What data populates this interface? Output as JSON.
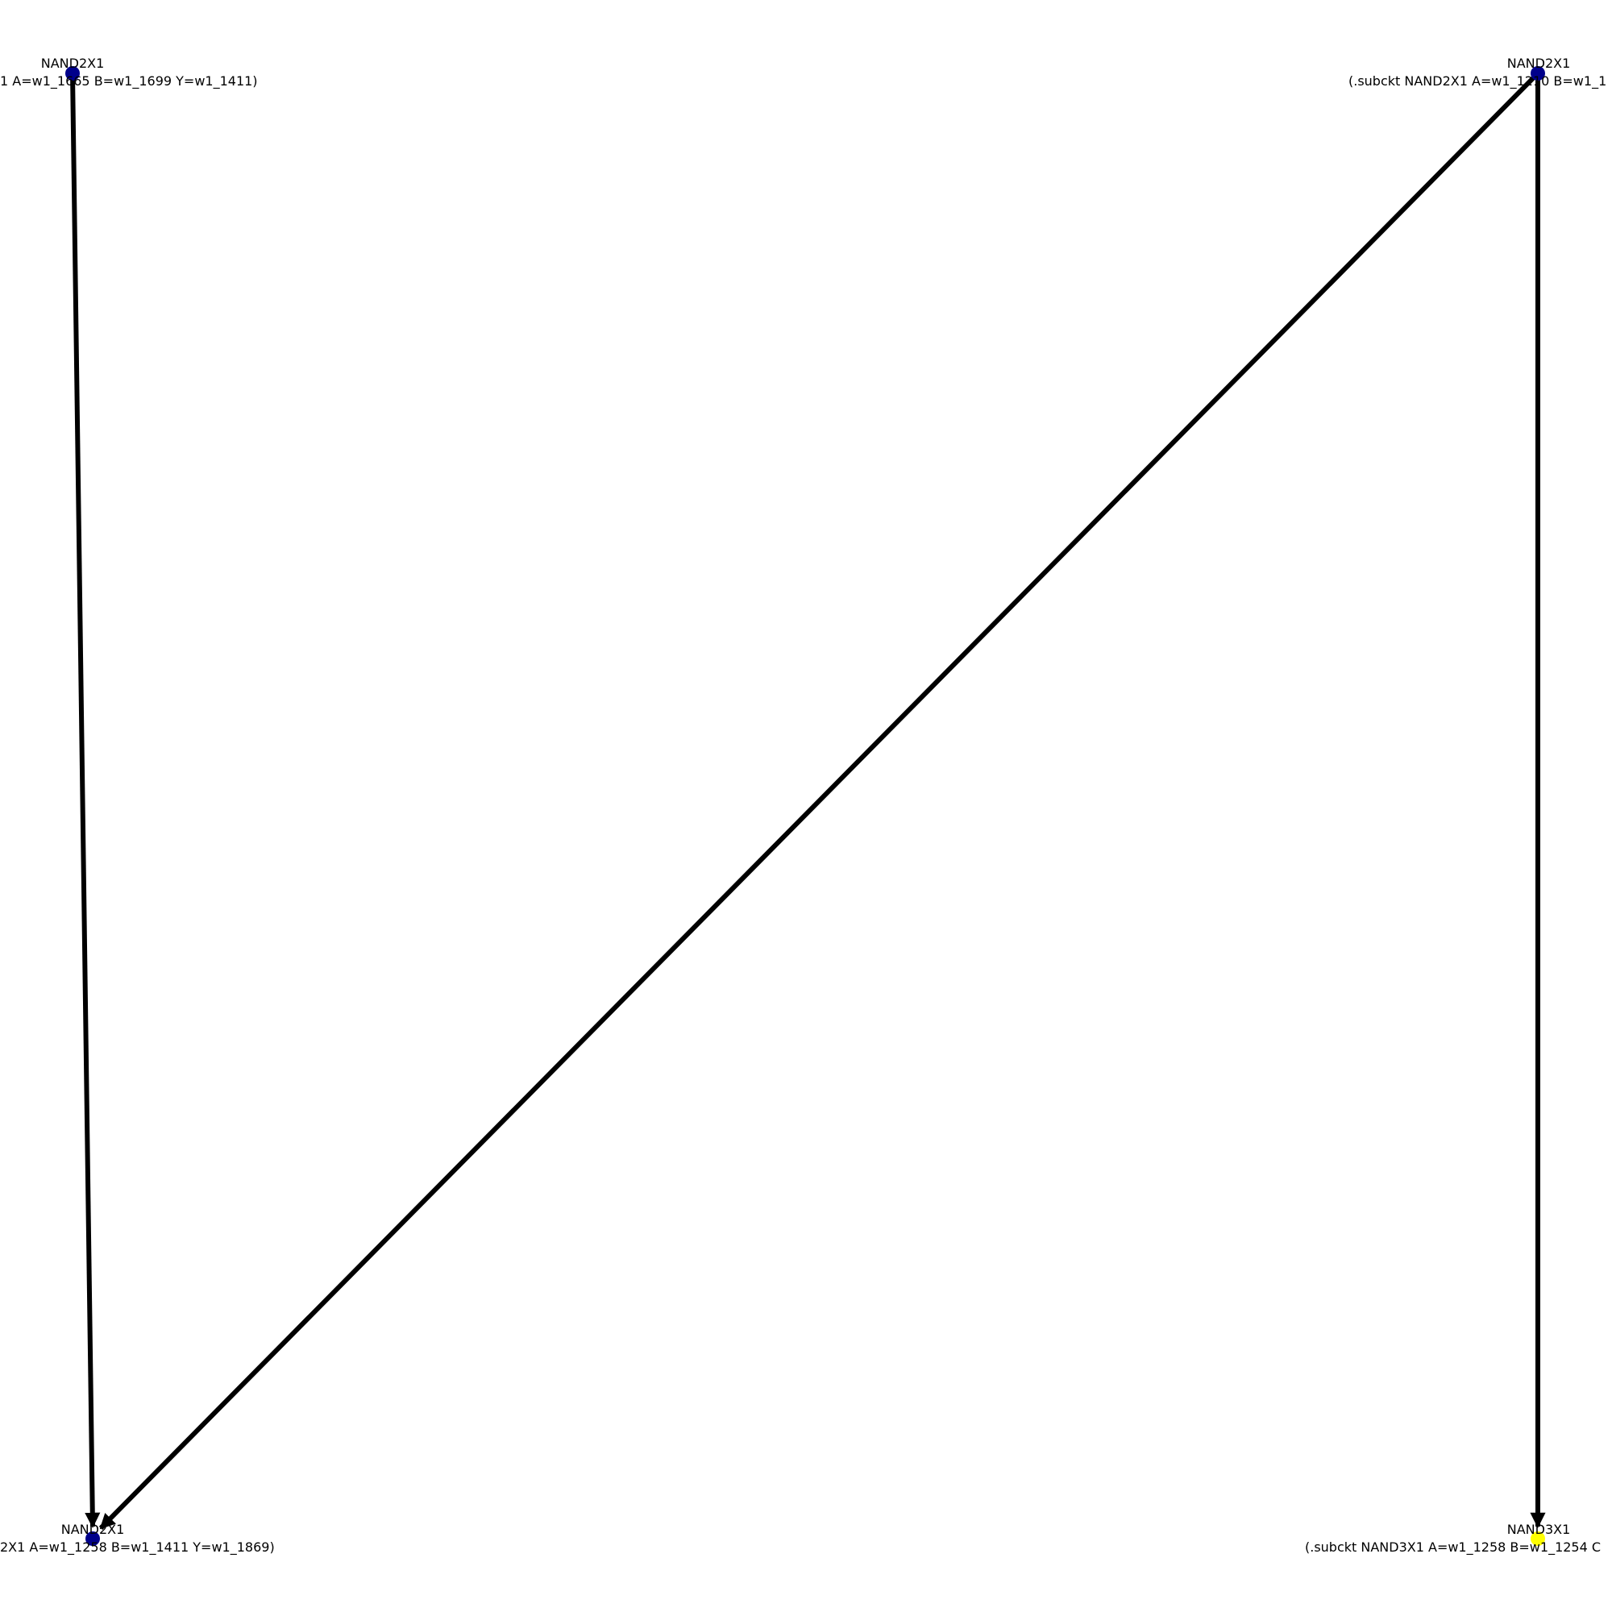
{
  "diagram": {
    "nodes": [
      {
        "id": "n1",
        "title": "NAND2X1",
        "detail": "1 A=w1_1665 B=w1_1699 Y=w1_1411)",
        "color": "#00008b"
      },
      {
        "id": "n2",
        "title": "NAND2X1",
        "detail": "(.subckt NAND2X1 A=w1_1210 B=w1_1",
        "color": "#00008b"
      },
      {
        "id": "n3",
        "title": "NAND2X1",
        "detail": "2X1 A=w1_1258 B=w1_1411 Y=w1_1869)",
        "color": "#00008b"
      },
      {
        "id": "n4",
        "title": "NAND3X1",
        "detail": "(.subckt NAND3X1 A=w1_1258 B=w1_1254 C",
        "color": "#ffff00"
      }
    ],
    "edges": [
      {
        "from": "n1",
        "to": "n3"
      },
      {
        "from": "n2",
        "to": "n3"
      },
      {
        "from": "n2",
        "to": "n4"
      }
    ]
  }
}
